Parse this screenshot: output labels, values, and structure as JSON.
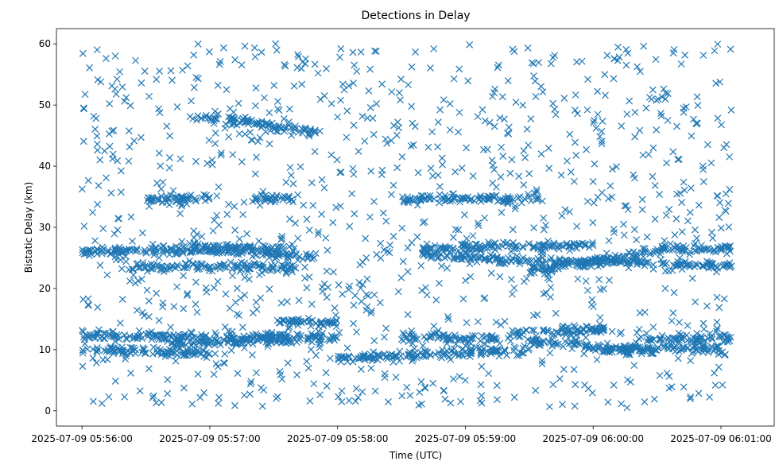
{
  "chart_data": {
    "type": "scatter",
    "title": "Detections in Delay",
    "xlabel": "Time (UTC)",
    "ylabel": "Bistatic Delay (km)",
    "marker": "x",
    "color": "#1f77b4",
    "grid": false,
    "x_axis": {
      "kind": "datetime",
      "start": "2025-07-09 05:55:48",
      "end": "2025-07-09 06:01:25"
    },
    "ylim": [
      -2.5,
      62.5
    ],
    "x_ticks": [
      "2025-07-09 05:56:00",
      "2025-07-09 05:57:00",
      "2025-07-09 05:58:00",
      "2025-07-09 05:59:00",
      "2025-07-09 06:00:00",
      "2025-07-09 06:01:00"
    ],
    "y_ticks": [
      0,
      10,
      20,
      30,
      40,
      50,
      60
    ],
    "tracks": [
      {
        "t_start": "2025-07-09 05:56:00",
        "t_end": "2025-07-09 05:57:00",
        "y_start": 10.0,
        "y_end": 9.5
      },
      {
        "t_start": "2025-07-09 05:56:00",
        "t_end": "2025-07-09 05:58:00",
        "y_start": 12.2,
        "y_end": 12.0
      },
      {
        "t_start": "2025-07-09 05:56:40",
        "t_end": "2025-07-09 05:57:40",
        "y_start": 11.0,
        "y_end": 11.5
      },
      {
        "t_start": "2025-07-09 05:58:00",
        "t_end": "2025-07-09 05:59:30",
        "y_start": 8.5,
        "y_end": 10.0
      },
      {
        "t_start": "2025-07-09 05:58:30",
        "t_end": "2025-07-09 05:59:15",
        "y_start": 12.0,
        "y_end": 11.8
      },
      {
        "t_start": "2025-07-09 05:59:20",
        "t_end": "2025-07-09 06:00:10",
        "y_start": 12.5,
        "y_end": 13.5
      },
      {
        "t_start": "2025-07-09 05:59:30",
        "t_end": "2025-07-09 06:00:30",
        "y_start": 11.5,
        "y_end": 9.5
      },
      {
        "t_start": "2025-07-09 06:00:00",
        "t_end": "2025-07-09 06:01:00",
        "y_start": 10.0,
        "y_end": 10.2
      },
      {
        "t_start": "2025-07-09 06:00:20",
        "t_end": "2025-07-09 06:01:05",
        "y_start": 11.5,
        "y_end": 12.0
      },
      {
        "t_start": "2025-07-09 05:56:00",
        "t_end": "2025-07-09 05:57:40",
        "y_start": 26.0,
        "y_end": 26.5
      },
      {
        "t_start": "2025-07-09 05:56:20",
        "t_end": "2025-07-09 05:57:40",
        "y_start": 23.5,
        "y_end": 23.5
      },
      {
        "t_start": "2025-07-09 05:56:50",
        "t_end": "2025-07-09 05:57:50",
        "y_start": 27.0,
        "y_end": 25.0
      },
      {
        "t_start": "2025-07-09 05:58:40",
        "t_end": "2025-07-09 06:00:00",
        "y_start": 26.5,
        "y_end": 27.0
      },
      {
        "t_start": "2025-07-09 05:58:40",
        "t_end": "2025-07-09 06:00:00",
        "y_start": 25.5,
        "y_end": 24.0
      },
      {
        "t_start": "2025-07-09 05:59:30",
        "t_end": "2025-07-09 06:00:30",
        "y_start": 23.0,
        "y_end": 26.0
      },
      {
        "t_start": "2025-07-09 06:00:00",
        "t_end": "2025-07-09 06:01:05",
        "y_start": 24.5,
        "y_end": 23.5
      },
      {
        "t_start": "2025-07-09 06:00:30",
        "t_end": "2025-07-09 06:01:05",
        "y_start": 26.5,
        "y_end": 26.5
      },
      {
        "t_start": "2025-07-09 05:56:30",
        "t_end": "2025-07-09 05:57:00",
        "y_start": 34.5,
        "y_end": 34.8
      },
      {
        "t_start": "2025-07-09 05:57:20",
        "t_end": "2025-07-09 05:57:40",
        "y_start": 34.5,
        "y_end": 34.8
      },
      {
        "t_start": "2025-07-09 05:58:30",
        "t_end": "2025-07-09 05:59:15",
        "y_start": 34.5,
        "y_end": 34.8
      },
      {
        "t_start": "2025-07-09 05:59:15",
        "t_end": "2025-07-09 05:59:35",
        "y_start": 34.2,
        "y_end": 35.0
      },
      {
        "t_start": "2025-07-09 05:56:50",
        "t_end": "2025-07-09 05:57:20",
        "y_start": 48.0,
        "y_end": 47.2
      },
      {
        "t_start": "2025-07-09 05:57:20",
        "t_end": "2025-07-09 05:57:50",
        "y_start": 47.0,
        "y_end": 45.5
      },
      {
        "t_start": "2025-07-09 05:57:30",
        "t_end": "2025-07-09 05:58:00",
        "y_start": 14.5,
        "y_end": 14.5
      }
    ],
    "background_noise": {
      "t_start": "2025-07-09 05:56:00",
      "t_end": "2025-07-09 06:01:05",
      "y_min": 0.5,
      "y_max": 60
    }
  }
}
